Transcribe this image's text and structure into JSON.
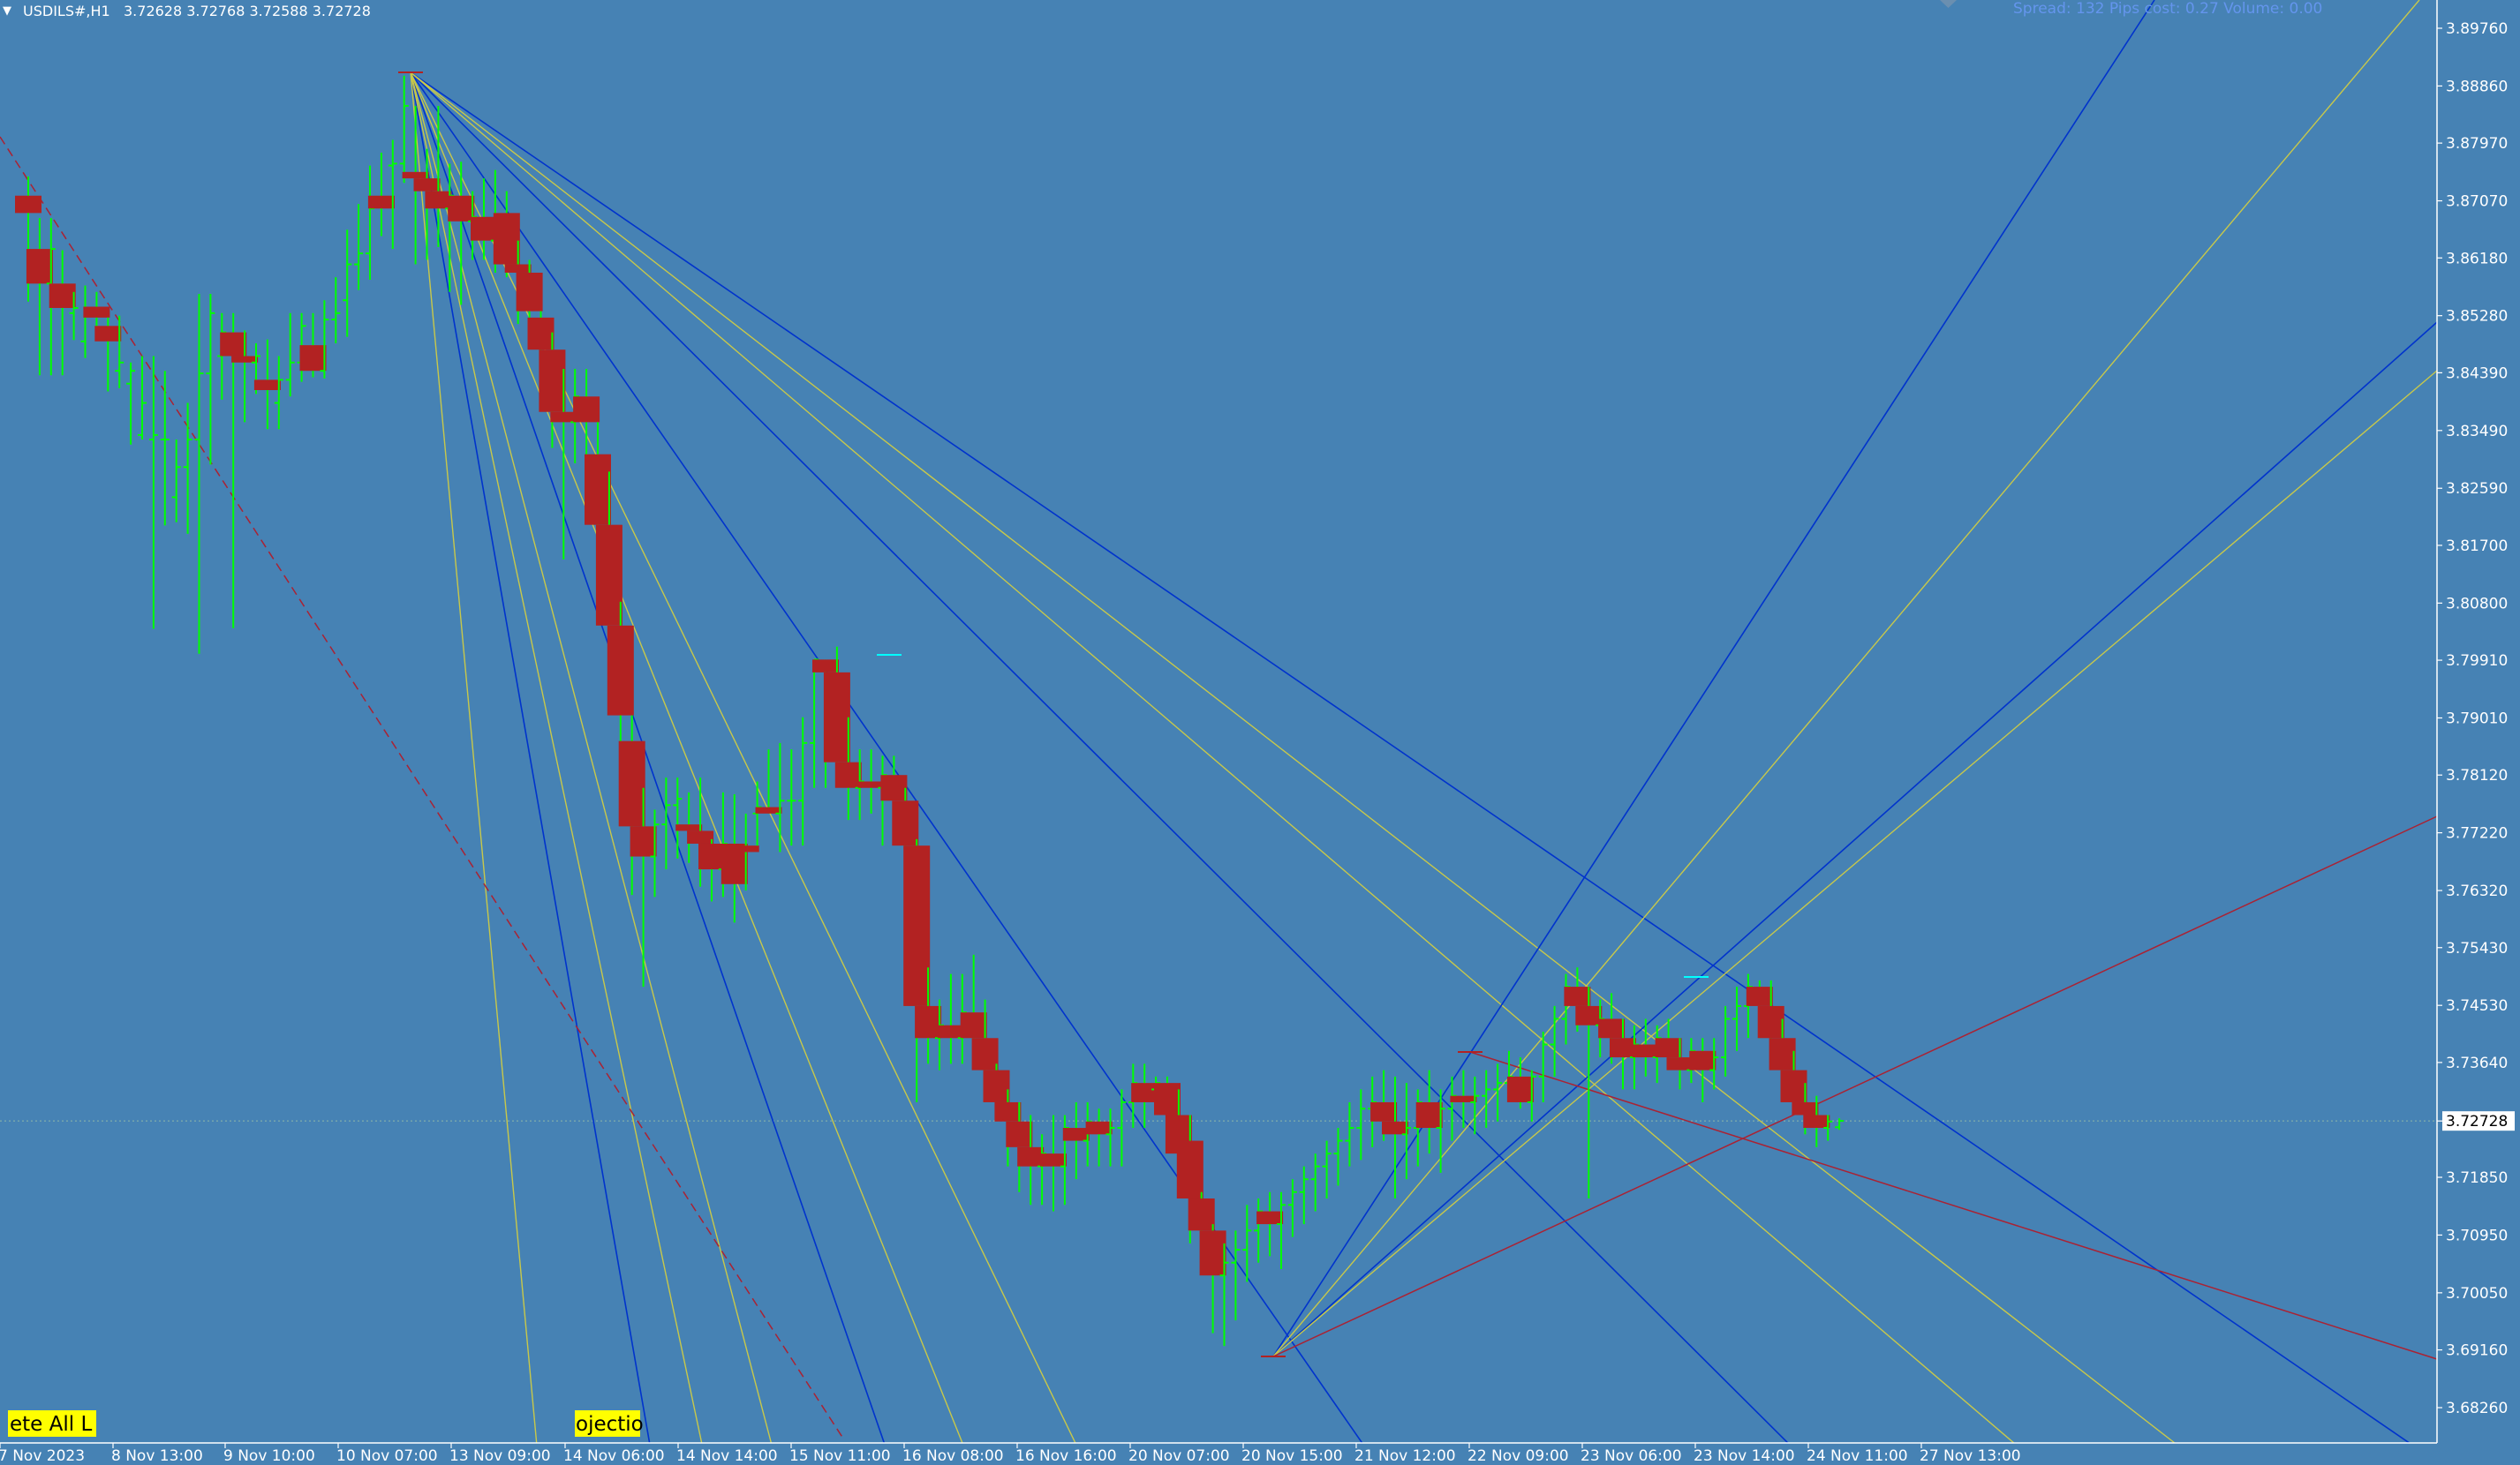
{
  "header": {
    "menu_glyph": "▼",
    "symbol_text": "USDILS#,H1",
    "ohlc_text": "3.72628 3.72768 3.72588 3.72728",
    "info_text": "Spread: 132  Pips cost: 0.27  Volume: 0.00"
  },
  "buttons": {
    "delete_all": "ete All L",
    "projection": "ojectio"
  },
  "colors": {
    "background": "#4682b4",
    "axis_text": "#ffffff",
    "bull_candle": "#00ff00",
    "bear_candle": "#b22222",
    "fan_blue": "#0033cc",
    "fan_yellow": "#c8c84a",
    "trend_red": "#aa2233",
    "button_bg": "#ffff00",
    "price_tag_bg": "#ffffff",
    "info_text": "#6495ed"
  },
  "chart_data": {
    "type": "candlestick",
    "symbol": "USDILS#",
    "timeframe": "H1",
    "last_price": "3.72728",
    "ylim": [
      3.6826,
      3.8976
    ],
    "y_ticks": [
      "3.89760",
      "3.88860",
      "3.87970",
      "3.87070",
      "3.86180",
      "3.85280",
      "3.84390",
      "3.83490",
      "3.82590",
      "3.81700",
      "3.80800",
      "3.79910",
      "3.79010",
      "3.78120",
      "3.77220",
      "3.76320",
      "3.75430",
      "3.74530",
      "3.73640",
      "3.72728",
      "3.71850",
      "3.70950",
      "3.70050",
      "3.69160",
      "3.68260"
    ],
    "x_ticks": [
      "7 Nov 2023",
      "8 Nov 13:00",
      "9 Nov 10:00",
      "10 Nov 07:00",
      "13 Nov 09:00",
      "14 Nov 06:00",
      "14 Nov 14:00",
      "15 Nov 11:00",
      "16 Nov 08:00",
      "16 Nov 16:00",
      "20 Nov 07:00",
      "20 Nov 15:00",
      "21 Nov 12:00",
      "22 Nov 09:00",
      "23 Nov 06:00",
      "23 Nov 14:00",
      "24 Nov 11:00",
      "27 Nov 13:00"
    ],
    "bars": [
      {
        "o": 3.8715,
        "h": 3.8745,
        "l": 3.855,
        "c": 3.8688
      },
      {
        "o": 3.8632,
        "h": 3.868,
        "l": 3.8435,
        "c": 3.8578
      },
      {
        "o": 3.8578,
        "h": 3.868,
        "l": 3.8435,
        "c": 3.8632
      },
      {
        "o": 3.8578,
        "h": 3.863,
        "l": 3.8435,
        "c": 3.854
      },
      {
        "o": 3.8532,
        "h": 3.8565,
        "l": 3.849,
        "c": 3.854
      },
      {
        "o": 3.8488,
        "h": 3.8575,
        "l": 3.8462,
        "c": 3.8532
      },
      {
        "o": 3.8542,
        "h": 3.8565,
        "l": 3.8508,
        "c": 3.8525
      },
      {
        "o": 3.8512,
        "h": 3.8525,
        "l": 3.841,
        "c": 3.8488
      },
      {
        "o": 3.8442,
        "h": 3.8528,
        "l": 3.8415,
        "c": 3.8455
      },
      {
        "o": 3.8422,
        "h": 3.8455,
        "l": 3.8327,
        "c": 3.8442
      },
      {
        "o": 3.8342,
        "h": 3.8465,
        "l": 3.8335,
        "c": 3.8392
      },
      {
        "o": 3.8335,
        "h": 3.8465,
        "l": 3.804,
        "c": 3.8342
      },
      {
        "o": 3.8335,
        "h": 3.8442,
        "l": 3.8201,
        "c": 3.8335
      },
      {
        "o": 3.8245,
        "h": 3.8335,
        "l": 3.8206,
        "c": 3.8292
      },
      {
        "o": 3.8292,
        "h": 3.8392,
        "l": 3.8188,
        "c": 3.8335
      },
      {
        "o": 3.8335,
        "h": 3.8562,
        "l": 3.8001,
        "c": 3.8438
      },
      {
        "o": 3.8438,
        "h": 3.8562,
        "l": 3.8296,
        "c": 3.8532
      },
      {
        "o": 3.8465,
        "h": 3.8532,
        "l": 3.8397,
        "c": 3.8502
      },
      {
        "o": 3.8502,
        "h": 3.8532,
        "l": 3.8041,
        "c": 3.8465
      },
      {
        "o": 3.8465,
        "h": 3.8505,
        "l": 3.8362,
        "c": 3.8455
      },
      {
        "o": 3.8455,
        "h": 3.8485,
        "l": 3.8406,
        "c": 3.8465
      },
      {
        "o": 3.8428,
        "h": 3.8491,
        "l": 3.8351,
        "c": 3.8412
      },
      {
        "o": 3.8392,
        "h": 3.8465,
        "l": 3.8351,
        "c": 3.8428
      },
      {
        "o": 3.8428,
        "h": 3.8532,
        "l": 3.8402,
        "c": 3.8455
      },
      {
        "o": 3.8455,
        "h": 3.8532,
        "l": 3.8425,
        "c": 3.8512
      },
      {
        "o": 3.8482,
        "h": 3.8532,
        "l": 3.8432,
        "c": 3.8442
      },
      {
        "o": 3.8442,
        "h": 3.8552,
        "l": 3.843,
        "c": 3.8522
      },
      {
        "o": 3.8522,
        "h": 3.8588,
        "l": 3.8485,
        "c": 3.8532
      },
      {
        "o": 3.8552,
        "h": 3.8662,
        "l": 3.8495,
        "c": 3.8608
      },
      {
        "o": 3.8608,
        "h": 3.8702,
        "l": 3.8568,
        "c": 3.8625
      },
      {
        "o": 3.8625,
        "h": 3.8762,
        "l": 3.8584,
        "c": 3.8695
      },
      {
        "o": 3.8715,
        "h": 3.8782,
        "l": 3.8652,
        "c": 3.8695
      },
      {
        "o": 3.8762,
        "h": 3.8802,
        "l": 3.8632,
        "c": 3.8765
      },
      {
        "o": 3.8765,
        "h": 3.8902,
        "l": 3.8735,
        "c": 3.8855
      },
      {
        "o": 3.8752,
        "h": 3.8855,
        "l": 3.8608,
        "c": 3.8742
      },
      {
        "o": 3.8742,
        "h": 3.8788,
        "l": 3.8615,
        "c": 3.8722
      },
      {
        "o": 3.8722,
        "h": 3.8855,
        "l": 3.8635,
        "c": 3.8695
      },
      {
        "o": 3.8695,
        "h": 3.8765,
        "l": 3.8565,
        "c": 3.8715
      },
      {
        "o": 3.8715,
        "h": 3.8768,
        "l": 3.8545,
        "c": 3.8675
      },
      {
        "o": 3.8675,
        "h": 3.8722,
        "l": 3.8615,
        "c": 3.8682
      },
      {
        "o": 3.8682,
        "h": 3.8742,
        "l": 3.8615,
        "c": 3.8645
      },
      {
        "o": 3.8645,
        "h": 3.8755,
        "l": 3.8595,
        "c": 3.8668
      },
      {
        "o": 3.8688,
        "h": 3.8722,
        "l": 3.8588,
        "c": 3.8608
      },
      {
        "o": 3.8608,
        "h": 3.8645,
        "l": 3.8515,
        "c": 3.8595
      },
      {
        "o": 3.8595,
        "h": 3.8615,
        "l": 3.8495,
        "c": 3.8535
      },
      {
        "o": 3.8525,
        "h": 3.8535,
        "l": 3.8425,
        "c": 3.8475
      },
      {
        "o": 3.8475,
        "h": 3.8502,
        "l": 3.8322,
        "c": 3.8378
      },
      {
        "o": 3.8378,
        "h": 3.8445,
        "l": 3.8148,
        "c": 3.8362
      },
      {
        "o": 3.8362,
        "h": 3.8445,
        "l": 3.8298,
        "c": 3.8402
      },
      {
        "o": 3.8402,
        "h": 3.8445,
        "l": 3.8302,
        "c": 3.8362
      },
      {
        "o": 3.8312,
        "h": 3.8362,
        "l": 3.8128,
        "c": 3.8202
      },
      {
        "o": 3.8202,
        "h": 3.8285,
        "l": 3.7975,
        "c": 3.8045
      },
      {
        "o": 3.8045,
        "h": 3.8082,
        "l": 3.7838,
        "c": 3.7905
      },
      {
        "o": 3.7865,
        "h": 3.7905,
        "l": 3.7625,
        "c": 3.7732
      },
      {
        "o": 3.7732,
        "h": 3.7792,
        "l": 3.7482,
        "c": 3.7685
      },
      {
        "o": 3.7685,
        "h": 3.7758,
        "l": 3.7622,
        "c": 3.7735
      },
      {
        "o": 3.7735,
        "h": 3.7808,
        "l": 3.7665,
        "c": 3.7765
      },
      {
        "o": 3.7765,
        "h": 3.7808,
        "l": 3.7682,
        "c": 3.7775
      },
      {
        "o": 3.7735,
        "h": 3.7785,
        "l": 3.7675,
        "c": 3.7725
      },
      {
        "o": 3.7725,
        "h": 3.7808,
        "l": 3.7638,
        "c": 3.7705
      },
      {
        "o": 3.7705,
        "h": 3.7712,
        "l": 3.7615,
        "c": 3.7665
      },
      {
        "o": 3.7665,
        "h": 3.7785,
        "l": 3.7622,
        "c": 3.7705
      },
      {
        "o": 3.7705,
        "h": 3.7782,
        "l": 3.7582,
        "c": 3.7642
      },
      {
        "o": 3.7702,
        "h": 3.7752,
        "l": 3.7632,
        "c": 3.7692
      },
      {
        "o": 3.7752,
        "h": 3.7802,
        "l": 3.7702,
        "c": 3.7762
      },
      {
        "o": 3.7762,
        "h": 3.7852,
        "l": 3.7752,
        "c": 3.7752
      },
      {
        "o": 3.7752,
        "h": 3.7862,
        "l": 3.7692,
        "c": 3.7772
      },
      {
        "o": 3.7772,
        "h": 3.7852,
        "l": 3.7702,
        "c": 3.7772
      },
      {
        "o": 3.7772,
        "h": 3.7902,
        "l": 3.7702,
        "c": 3.7862
      },
      {
        "o": 3.7862,
        "h": 3.7992,
        "l": 3.7792,
        "c": 3.7992
      },
      {
        "o": 3.7992,
        "h": 3.7992,
        "l": 3.7792,
        "c": 3.7972
      },
      {
        "o": 3.7972,
        "h": 3.8012,
        "l": 3.7812,
        "c": 3.7832
      },
      {
        "o": 3.7832,
        "h": 3.7902,
        "l": 3.7742,
        "c": 3.7792
      },
      {
        "o": 3.7792,
        "h": 3.7852,
        "l": 3.7742,
        "c": 3.7802
      },
      {
        "o": 3.7802,
        "h": 3.7852,
        "l": 3.7752,
        "c": 3.7792
      },
      {
        "o": 3.7792,
        "h": 3.7842,
        "l": 3.7702,
        "c": 3.7812
      },
      {
        "o": 3.7812,
        "h": 3.7842,
        "l": 3.7782,
        "c": 3.7772
      },
      {
        "o": 3.7772,
        "h": 3.7792,
        "l": 3.7452,
        "c": 3.7702
      },
      {
        "o": 3.7702,
        "h": 3.7712,
        "l": 3.7302,
        "c": 3.7452
      },
      {
        "o": 3.7452,
        "h": 3.7512,
        "l": 3.7362,
        "c": 3.7402
      },
      {
        "o": 3.7402,
        "h": 3.7462,
        "l": 3.7352,
        "c": 3.7422
      },
      {
        "o": 3.7422,
        "h": 3.7502,
        "l": 3.7362,
        "c": 3.7402
      },
      {
        "o": 3.7402,
        "h": 3.7502,
        "l": 3.7362,
        "c": 3.7442
      },
      {
        "o": 3.7442,
        "h": 3.7532,
        "l": 3.7392,
        "c": 3.7402
      },
      {
        "o": 3.7402,
        "h": 3.7462,
        "l": 3.7302,
        "c": 3.7352
      },
      {
        "o": 3.7352,
        "h": 3.7362,
        "l": 3.7302,
        "c": 3.7302
      },
      {
        "o": 3.7302,
        "h": 3.7322,
        "l": 3.7202,
        "c": 3.7272
      },
      {
        "o": 3.7272,
        "h": 3.7302,
        "l": 3.7162,
        "c": 3.7232
      },
      {
        "o": 3.7232,
        "h": 3.7282,
        "l": 3.7142,
        "c": 3.7202
      },
      {
        "o": 3.7202,
        "h": 3.7252,
        "l": 3.7142,
        "c": 3.7222
      },
      {
        "o": 3.7222,
        "h": 3.7282,
        "l": 3.7132,
        "c": 3.7202
      },
      {
        "o": 3.7202,
        "h": 3.7282,
        "l": 3.7142,
        "c": 3.7262
      },
      {
        "o": 3.7262,
        "h": 3.7302,
        "l": 3.7182,
        "c": 3.7242
      },
      {
        "o": 3.7242,
        "h": 3.7302,
        "l": 3.7202,
        "c": 3.7272
      },
      {
        "o": 3.7272,
        "h": 3.7292,
        "l": 3.7202,
        "c": 3.7252
      },
      {
        "o": 3.7252,
        "h": 3.7292,
        "l": 3.7202,
        "c": 3.7262
      },
      {
        "o": 3.7262,
        "h": 3.7322,
        "l": 3.7202,
        "c": 3.7302
      },
      {
        "o": 3.7302,
        "h": 3.7362,
        "l": 3.7262,
        "c": 3.7332
      },
      {
        "o": 3.7332,
        "h": 3.7362,
        "l": 3.7262,
        "c": 3.7302
      },
      {
        "o": 3.7322,
        "h": 3.7342,
        "l": 3.7302,
        "c": 3.7332
      },
      {
        "o": 3.7332,
        "h": 3.7342,
        "l": 3.7252,
        "c": 3.7282
      },
      {
        "o": 3.7282,
        "h": 3.7322,
        "l": 3.7152,
        "c": 3.7222
      },
      {
        "o": 3.7242,
        "h": 3.7282,
        "l": 3.7082,
        "c": 3.7152
      },
      {
        "o": 3.7152,
        "h": 3.7162,
        "l": 3.7052,
        "c": 3.7102
      },
      {
        "o": 3.7102,
        "h": 3.7112,
        "l": 3.6942,
        "c": 3.7032
      },
      {
        "o": 3.7032,
        "h": 3.7082,
        "l": 3.6922,
        "c": 3.7052
      },
      {
        "o": 3.7052,
        "h": 3.7102,
        "l": 3.6962,
        "c": 3.7072
      },
      {
        "o": 3.7072,
        "h": 3.7142,
        "l": 3.7022,
        "c": 3.7102
      },
      {
        "o": 3.7102,
        "h": 3.7152,
        "l": 3.7052,
        "c": 3.7132
      },
      {
        "o": 3.7132,
        "h": 3.7162,
        "l": 3.7062,
        "c": 3.7112
      },
      {
        "o": 3.7112,
        "h": 3.7162,
        "l": 3.7042,
        "c": 3.7142
      },
      {
        "o": 3.7142,
        "h": 3.7182,
        "l": 3.7092,
        "c": 3.7162
      },
      {
        "o": 3.7162,
        "h": 3.7202,
        "l": 3.7112,
        "c": 3.7182
      },
      {
        "o": 3.7182,
        "h": 3.7222,
        "l": 3.7132,
        "c": 3.7202
      },
      {
        "o": 3.7202,
        "h": 3.7242,
        "l": 3.7152,
        "c": 3.7222
      },
      {
        "o": 3.7222,
        "h": 3.7262,
        "l": 3.7172,
        "c": 3.7242
      },
      {
        "o": 3.7242,
        "h": 3.7302,
        "l": 3.7202,
        "c": 3.7262
      },
      {
        "o": 3.7262,
        "h": 3.7322,
        "l": 3.7212,
        "c": 3.7292
      },
      {
        "o": 3.7292,
        "h": 3.7342,
        "l": 3.7232,
        "c": 3.7302
      },
      {
        "o": 3.7302,
        "h": 3.7352,
        "l": 3.7242,
        "c": 3.7272
      },
      {
        "o": 3.7272,
        "h": 3.7342,
        "l": 3.7152,
        "c": 3.7252
      },
      {
        "o": 3.7252,
        "h": 3.7332,
        "l": 3.7182,
        "c": 3.7262
      },
      {
        "o": 3.7262,
        "h": 3.7322,
        "l": 3.7202,
        "c": 3.7302
      },
      {
        "o": 3.7302,
        "h": 3.7352,
        "l": 3.7222,
        "c": 3.7262
      },
      {
        "o": 3.7262,
        "h": 3.7322,
        "l": 3.7192,
        "c": 3.7292
      },
      {
        "o": 3.7292,
        "h": 3.7342,
        "l": 3.7242,
        "c": 3.7312
      },
      {
        "o": 3.7312,
        "h": 3.7352,
        "l": 3.7262,
        "c": 3.7302
      },
      {
        "o": 3.7302,
        "h": 3.7342,
        "l": 3.7252,
        "c": 3.7312
      },
      {
        "o": 3.7312,
        "h": 3.7352,
        "l": 3.7262,
        "c": 3.7322
      },
      {
        "o": 3.7322,
        "h": 3.7362,
        "l": 3.7272,
        "c": 3.7332
      },
      {
        "o": 3.7332,
        "h": 3.7382,
        "l": 3.7302,
        "c": 3.7342
      },
      {
        "o": 3.7342,
        "h": 3.7372,
        "l": 3.7292,
        "c": 3.7302
      },
      {
        "o": 3.7302,
        "h": 3.7352,
        "l": 3.7272,
        "c": 3.7342
      },
      {
        "o": 3.7342,
        "h": 3.7412,
        "l": 3.7302,
        "c": 3.7392
      },
      {
        "o": 3.7392,
        "h": 3.7452,
        "l": 3.7342,
        "c": 3.7432
      },
      {
        "o": 3.7432,
        "h": 3.7502,
        "l": 3.7392,
        "c": 3.7482
      },
      {
        "o": 3.7482,
        "h": 3.7512,
        "l": 3.7412,
        "c": 3.7452
      },
      {
        "o": 3.7452,
        "h": 3.7482,
        "l": 3.7152,
        "c": 3.7422
      },
      {
        "o": 3.7422,
        "h": 3.7462,
        "l": 3.7372,
        "c": 3.7432
      },
      {
        "o": 3.7432,
        "h": 3.7472,
        "l": 3.7362,
        "c": 3.7402
      },
      {
        "o": 3.7402,
        "h": 3.7432,
        "l": 3.7322,
        "c": 3.7372
      },
      {
        "o": 3.7372,
        "h": 3.7422,
        "l": 3.7322,
        "c": 3.7392
      },
      {
        "o": 3.7392,
        "h": 3.7432,
        "l": 3.7342,
        "c": 3.7372
      },
      {
        "o": 3.7372,
        "h": 3.7422,
        "l": 3.7332,
        "c": 3.7402
      },
      {
        "o": 3.7402,
        "h": 3.7432,
        "l": 3.7352,
        "c": 3.7372
      },
      {
        "o": 3.7372,
        "h": 3.7402,
        "l": 3.7322,
        "c": 3.7352
      },
      {
        "o": 3.7352,
        "h": 3.7402,
        "l": 3.7332,
        "c": 3.7382
      },
      {
        "o": 3.7382,
        "h": 3.7402,
        "l": 3.7302,
        "c": 3.7352
      },
      {
        "o": 3.7352,
        "h": 3.7402,
        "l": 3.7322,
        "c": 3.7372
      },
      {
        "o": 3.7372,
        "h": 3.7452,
        "l": 3.7342,
        "c": 3.7432
      },
      {
        "o": 3.7432,
        "h": 3.7482,
        "l": 3.7382,
        "c": 3.7452
      },
      {
        "o": 3.7452,
        "h": 3.7502,
        "l": 3.7402,
        "c": 3.7482
      },
      {
        "o": 3.7482,
        "h": 3.7492,
        "l": 3.7402,
        "c": 3.7452
      },
      {
        "o": 3.7452,
        "h": 3.7492,
        "l": 3.7372,
        "c": 3.7402
      },
      {
        "o": 3.7402,
        "h": 3.7432,
        "l": 3.7302,
        "c": 3.7352
      },
      {
        "o": 3.7352,
        "h": 3.7382,
        "l": 3.7292,
        "c": 3.7302
      },
      {
        "o": 3.7302,
        "h": 3.7332,
        "l": 3.7252,
        "c": 3.7282
      },
      {
        "o": 3.7282,
        "h": 3.7312,
        "l": 3.7232,
        "c": 3.7262
      },
      {
        "o": 3.7262,
        "h": 3.7282,
        "l": 3.7242,
        "c": 3.7272
      },
      {
        "o": 3.7263,
        "h": 3.7277,
        "l": 3.7259,
        "c": 3.7273
      }
    ]
  }
}
